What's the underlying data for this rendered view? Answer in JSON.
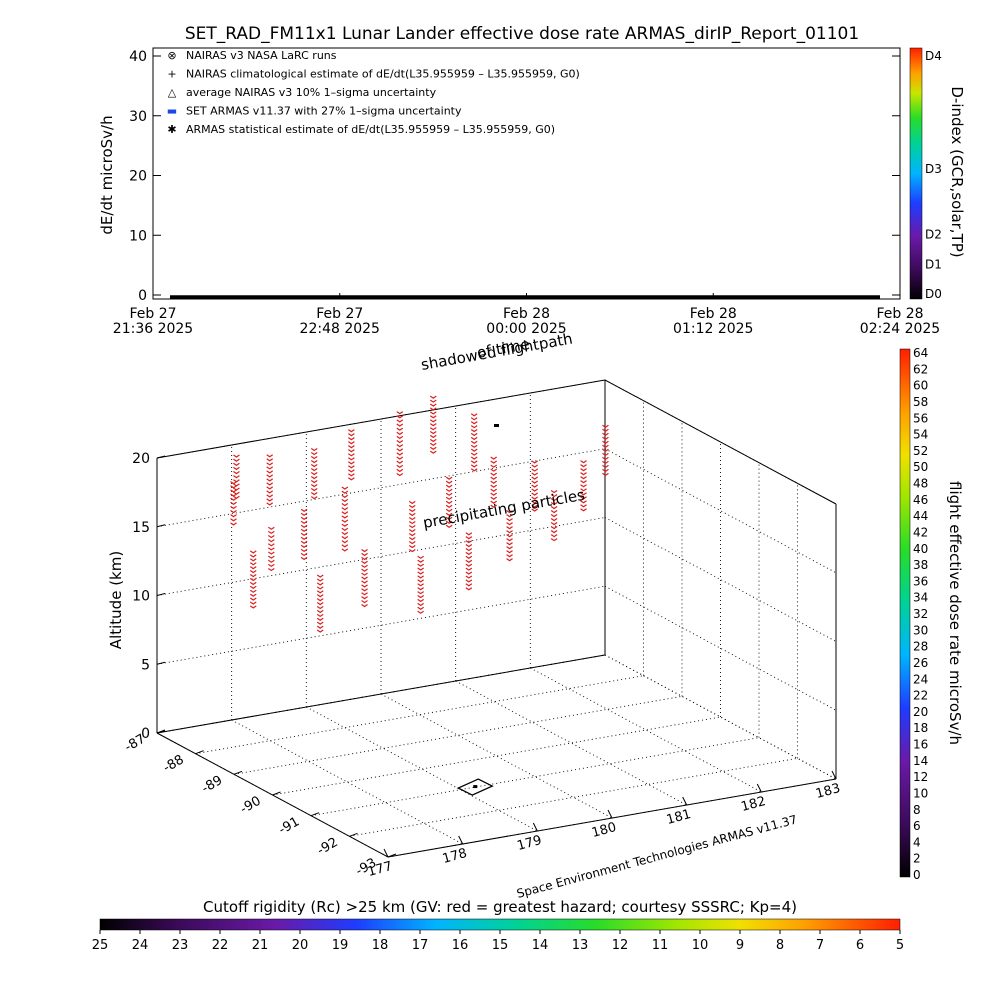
{
  "title": "SET_RAD_FM11x1  Lunar Lander effective dose rate ARMAS_dirIP_Report_01101",
  "chart_data": [
    {
      "type": "line",
      "ylabel": "dE/dt microSv/h",
      "ylim": [
        0,
        40
      ],
      "yticks": [
        "0",
        "10",
        "20",
        "30",
        "40"
      ],
      "xticks": [
        {
          "line1": "Feb 27",
          "line2": "21:36 2025"
        },
        {
          "line1": "Feb 27",
          "line2": "22:48 2025"
        },
        {
          "line1": "Feb 28",
          "line2": "00:00 2025"
        },
        {
          "line1": "Feb 28",
          "line2": "01:12 2025"
        },
        {
          "line1": "Feb 28",
          "line2": "02:24 2025"
        }
      ],
      "legend": [
        {
          "symbol": "⊗",
          "text": "NAIRAS v3 NASA LaRC runs"
        },
        {
          "symbol": "+",
          "text": "NAIRAS climatological estimate of dE/dt(L35.955959 – L35.955959, G0)"
        },
        {
          "symbol": "△",
          "text": "average NAIRAS v3 10% 1–sigma uncertainty"
        },
        {
          "symbol": "▬",
          "text": "SET ARMAS v11.37 with 27% 1–sigma uncertainty",
          "color": "#1e46e6"
        },
        {
          "symbol": "✱",
          "text": "ARMAS statistical estimate of dE/dt(L35.955959 – L35.955959, G0)"
        }
      ],
      "legend_position": "top-left",
      "series": [
        {
          "values_description_free": true,
          "y_constant": 0
        }
      ],
      "colorbar": {
        "label": "D-index (GCR,solar,TP)",
        "ticks": [
          "D4",
          "D3",
          "D2",
          "D1",
          "D0"
        ],
        "range": [
          0,
          4
        ]
      }
    },
    {
      "type": "scatter",
      "zlabel": "Altitude (km)",
      "zlim": [
        0,
        20
      ],
      "zticks": [
        "0",
        "5",
        "10",
        "15",
        "20"
      ],
      "lon_ticks": [
        "177",
        "178",
        "179",
        "180",
        "181",
        "182",
        "183"
      ],
      "lat_ticks": [
        "-93",
        "-92",
        "-91",
        "-90",
        "-89",
        "-88",
        "-87"
      ],
      "labels": [
        "shadowed flightpath",
        "of time",
        "precipitating particles"
      ],
      "credit": "Space Environment Technologies ARMAS v11.37",
      "colorbar": {
        "label": "flight effective dose rate microSv/h",
        "range": [
          0,
          64
        ],
        "ticks": [
          "0",
          "2",
          "4",
          "6",
          "8",
          "10",
          "12",
          "14",
          "16",
          "18",
          "20",
          "22",
          "24",
          "26",
          "28",
          "30",
          "32",
          "34",
          "36",
          "38",
          "40",
          "42",
          "44",
          "46",
          "48",
          "50",
          "52",
          "54",
          "56",
          "58",
          "60",
          "62",
          "64"
        ]
      },
      "particle_columns": [
        {
          "lon": 177.2,
          "lat": -88.6,
          "z_top": 20.5,
          "z_bot": 17.5
        },
        {
          "lon": 177.6,
          "lat": -87.9,
          "z_top": 21.0,
          "z_bot": 18.0
        },
        {
          "lon": 178.2,
          "lat": -87.6,
          "z_top": 20.0,
          "z_bot": 16.5
        },
        {
          "lon": 178.9,
          "lat": -87.4,
          "z_top": 19.5,
          "z_bot": 16.0
        },
        {
          "lon": 179.5,
          "lat": -87.2,
          "z_top": 20.0,
          "z_bot": 16.5
        },
        {
          "lon": 180.2,
          "lat": -87.1,
          "z_top": 20.5,
          "z_bot": 16.0
        },
        {
          "lon": 180.7,
          "lat": -87.0,
          "z_top": 21.0,
          "z_bot": 17.0
        },
        {
          "lon": 181.3,
          "lat": -86.9,
          "z_top": 19.0,
          "z_bot": 15.0
        },
        {
          "lon": 177.0,
          "lat": -89.5,
          "z_top": 17.0,
          "z_bot": 13.0
        },
        {
          "lon": 177.5,
          "lat": -89.0,
          "z_top": 17.5,
          "z_bot": 14.5
        },
        {
          "lon": 178.3,
          "lat": -88.3,
          "z_top": 17.0,
          "z_bot": 13.5
        },
        {
          "lon": 179.0,
          "lat": -88.0,
          "z_top": 17.5,
          "z_bot": 13.0
        },
        {
          "lon": 179.8,
          "lat": -88.2,
          "z_top": 16.0,
          "z_bot": 12.5
        },
        {
          "lon": 180.5,
          "lat": -87.8,
          "z_top": 16.5,
          "z_bot": 13.0
        },
        {
          "lon": 181.2,
          "lat": -87.6,
          "z_top": 17.0,
          "z_bot": 13.5
        },
        {
          "lon": 181.8,
          "lat": -87.5,
          "z_top": 16.0,
          "z_bot": 12.5
        },
        {
          "lon": 178.0,
          "lat": -89.3,
          "z_top": 14.0,
          "z_bot": 10.0
        },
        {
          "lon": 178.8,
          "lat": -88.9,
          "z_top": 14.5,
          "z_bot": 10.5
        },
        {
          "lon": 179.5,
          "lat": -89.0,
          "z_top": 13.5,
          "z_bot": 9.5
        },
        {
          "lon": 180.3,
          "lat": -88.7,
          "z_top": 14.0,
          "z_bot": 10.0
        },
        {
          "lon": 181.0,
          "lat": -88.4,
          "z_top": 14.5,
          "z_bot": 11.0
        },
        {
          "lon": 181.7,
          "lat": -88.2,
          "z_top": 15.0,
          "z_bot": 11.5
        },
        {
          "lon": 182.3,
          "lat": -87.8,
          "z_top": 16.0,
          "z_bot": 12.5
        },
        {
          "lon": 182.8,
          "lat": -87.4,
          "z_top": 17.5,
          "z_bot": 14.0
        }
      ],
      "particle_color": "#dc1e1e",
      "flight_track": {
        "lon": 179.2,
        "lat": -91.0
      }
    }
  ],
  "footer": {
    "cutoff_label": "Cutoff rigidity (Rc) >25 km (GV: red = greatest hazard; courtesy SSSRC; Kp=4)",
    "cutoff_ticks": [
      "25",
      "24",
      "23",
      "22",
      "21",
      "20",
      "19",
      "18",
      "17",
      "16",
      "15",
      "14",
      "13",
      "12",
      "11",
      "10",
      "9",
      "8",
      "7",
      "6",
      "5"
    ]
  }
}
